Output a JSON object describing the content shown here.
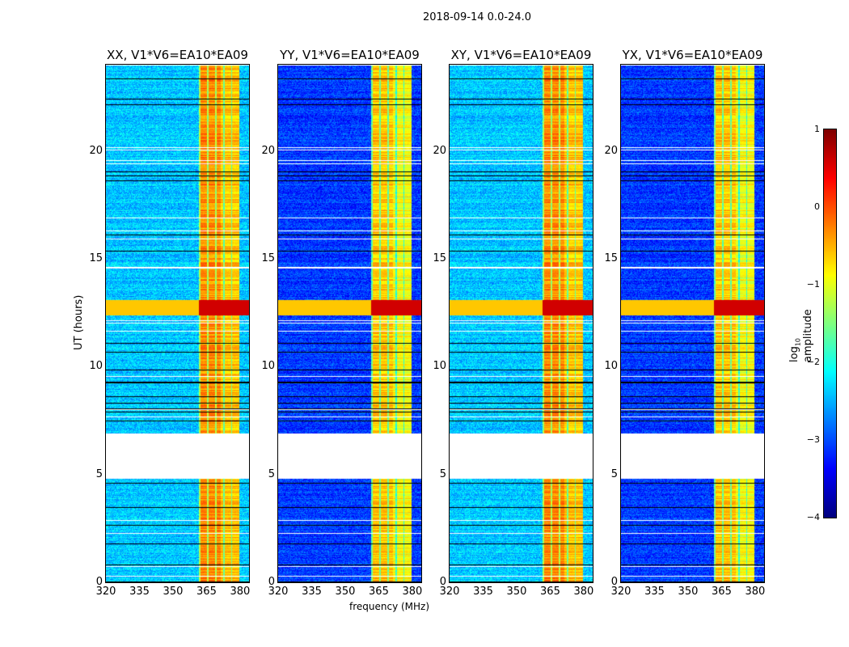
{
  "chart_data": {
    "type": "heatmap",
    "title": "2018-09-14 0.0-24.0",
    "xlabel": "frequency (MHz)",
    "ylabel": "UT (hours)",
    "xlim": [
      320,
      384
    ],
    "ylim": [
      0,
      24
    ],
    "xticks": [
      "320",
      "335",
      "350",
      "365",
      "380"
    ],
    "xtick_values": [
      320,
      335,
      350,
      365,
      380
    ],
    "yticks": [
      "0",
      "5",
      "10",
      "15",
      "20"
    ],
    "ytick_values": [
      0,
      5,
      10,
      15,
      20
    ],
    "panels": [
      {
        "title": "XX, V1*V6=EA10*EA09",
        "base_level": -2.4,
        "band_level": -0.6
      },
      {
        "title": "YY, V1*V6=EA10*EA09",
        "base_level": -3.1,
        "band_level": -0.9
      },
      {
        "title": "XY, V1*V6=EA10*EA09",
        "base_level": -2.4,
        "band_level": -0.6
      },
      {
        "title": "YX, V1*V6=EA10*EA09",
        "base_level": -3.1,
        "band_level": -0.9
      }
    ],
    "band_mhz": [
      361.5,
      379.5
    ],
    "data_gap_hours": [
      4.8,
      6.9
    ],
    "rfi_burst_hours": [
      12.4,
      13.1
    ],
    "colorbar": {
      "label": "log10 amplitude",
      "label_main": "log",
      "label_sub": "10",
      "label_rest": " amplitude",
      "min": -4,
      "max": 1,
      "ticks": [
        "1",
        "0",
        "−1",
        "−2",
        "−3",
        "−4"
      ],
      "tick_values": [
        1,
        0,
        -1,
        -2,
        -3,
        -4
      ],
      "colormap": "jet"
    }
  }
}
